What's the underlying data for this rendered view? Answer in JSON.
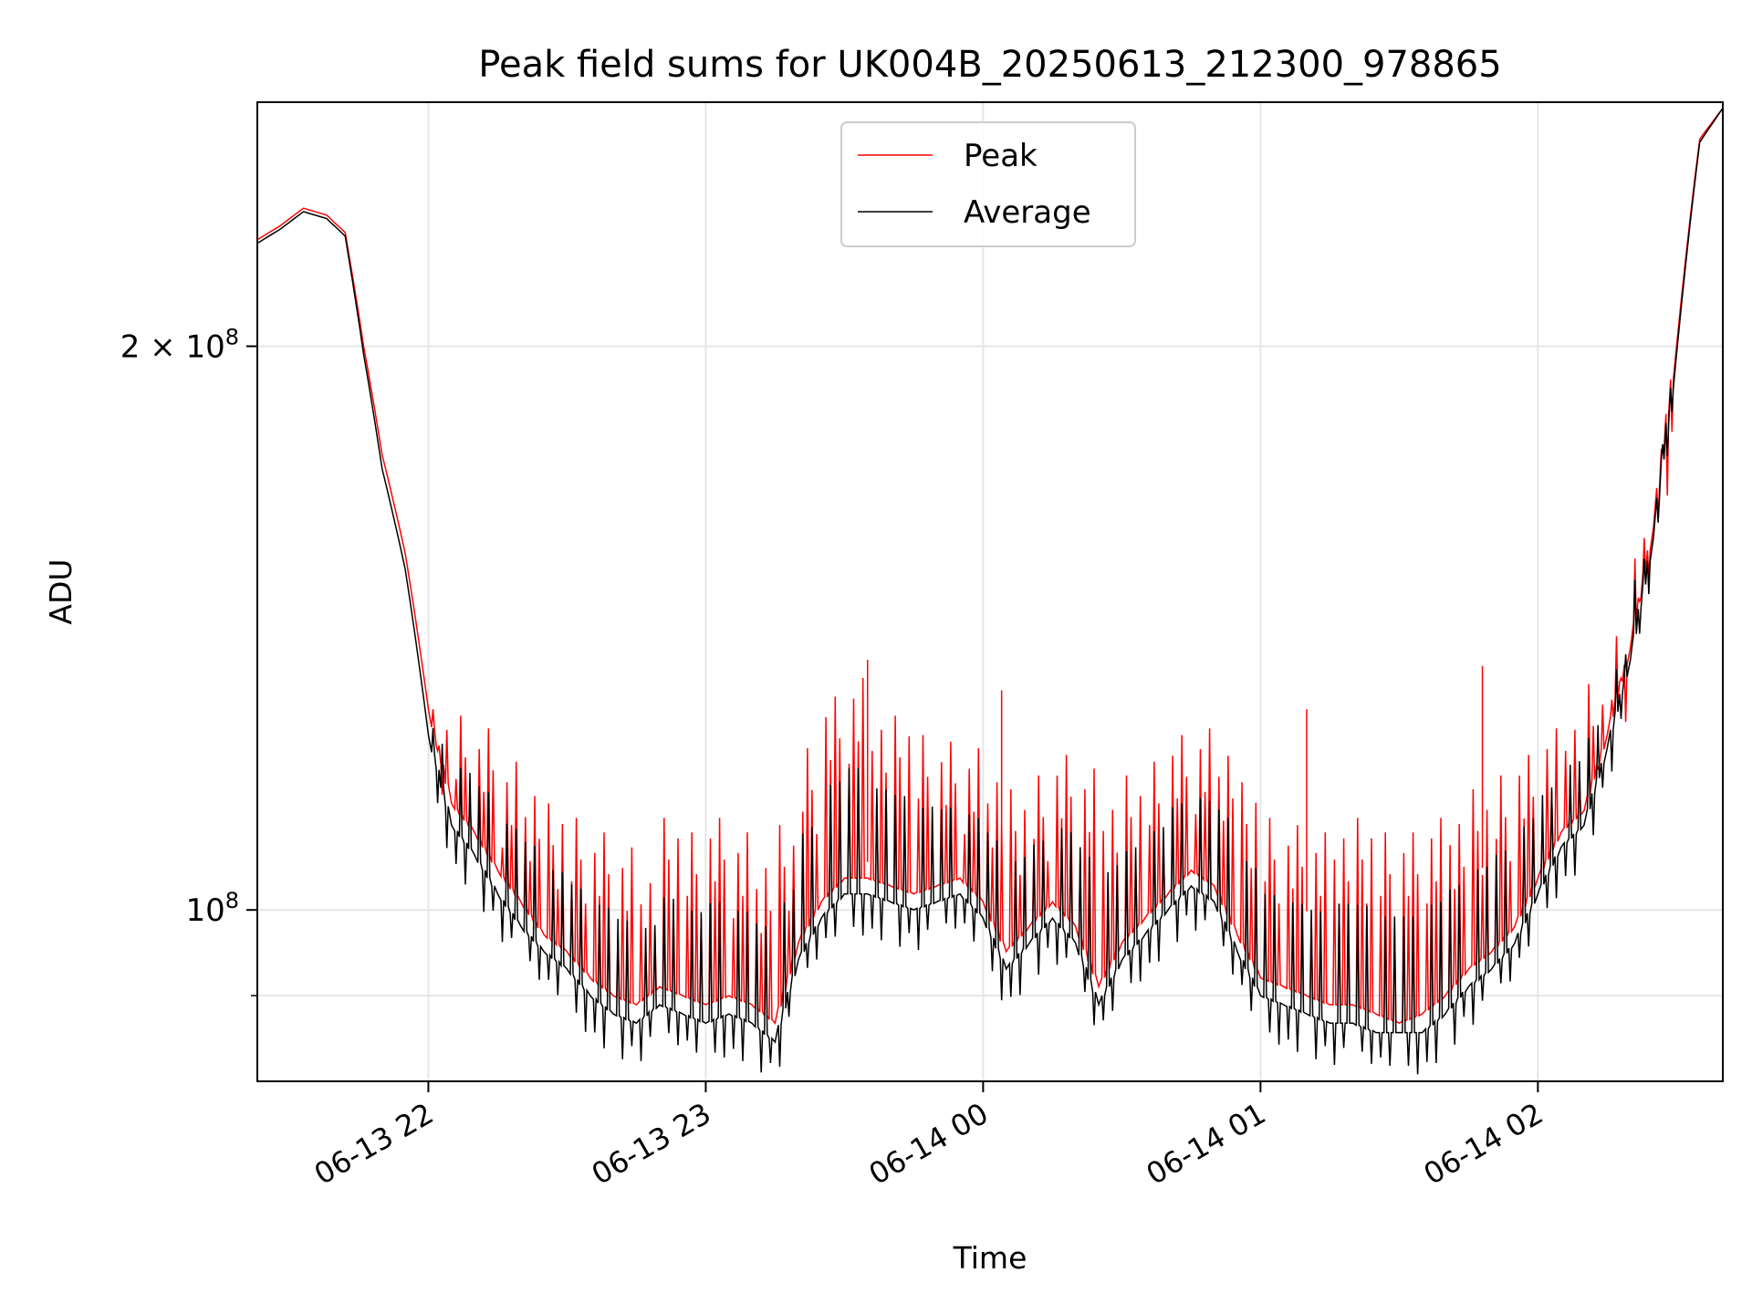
{
  "chart_data": {
    "type": "line",
    "title": "Peak field sums for UK004B_20250613_212300_978865",
    "xlabel": "Time",
    "ylabel": "ADU",
    "yscale": "log",
    "grid": true,
    "legend_position": "upper center",
    "x_range": [
      "2025-06-13T21:23:00",
      "2025-06-14T02:40:00"
    ],
    "y_range": [
      81000000,
      270000000
    ],
    "x_ticks": [
      {
        "value": "2025-06-13T22:00:00",
        "label": "06-13 22"
      },
      {
        "value": "2025-06-13T23:00:00",
        "label": "06-13 23"
      },
      {
        "value": "2025-06-14T00:00:00",
        "label": "06-14 00"
      },
      {
        "value": "2025-06-14T01:00:00",
        "label": "06-14 01"
      },
      {
        "value": "2025-06-14T02:00:00",
        "label": "06-14 02"
      }
    ],
    "y_ticks": [
      {
        "value": 100000000,
        "label": "10",
        "exp": "8",
        "prefix": ""
      },
      {
        "value": 200000000,
        "label": "10",
        "exp": "8",
        "prefix": "2 × "
      }
    ],
    "y_minor_ticks": [
      90000000
    ],
    "x": [
      "2025-06-13T21:23:00",
      "2025-06-13T21:28:00",
      "2025-06-13T21:33:00",
      "2025-06-13T21:38:00",
      "2025-06-13T21:42:00",
      "2025-06-13T21:46:00",
      "2025-06-13T21:50:00",
      "2025-06-13T21:55:00",
      "2025-06-13T22:00:00",
      "2025-06-13T22:05:00",
      "2025-06-13T22:10:00",
      "2025-06-13T22:15:00",
      "2025-06-13T22:20:00",
      "2025-06-13T22:25:00",
      "2025-06-13T22:30:00",
      "2025-06-13T22:35:00",
      "2025-06-13T22:40:00",
      "2025-06-13T22:45:00",
      "2025-06-13T22:50:00",
      "2025-06-13T22:55:00",
      "2025-06-13T23:00:00",
      "2025-06-13T23:05:00",
      "2025-06-13T23:10:00",
      "2025-06-13T23:15:00",
      "2025-06-13T23:20:00",
      "2025-06-13T23:25:00",
      "2025-06-13T23:30:00",
      "2025-06-13T23:35:00",
      "2025-06-13T23:40:00",
      "2025-06-13T23:45:00",
      "2025-06-13T23:50:00",
      "2025-06-13T23:55:00",
      "2025-06-14T00:00:00",
      "2025-06-14T00:05:00",
      "2025-06-14T00:10:00",
      "2025-06-14T00:15:00",
      "2025-06-14T00:20:00",
      "2025-06-14T00:25:00",
      "2025-06-14T00:30:00",
      "2025-06-14T00:35:00",
      "2025-06-14T00:40:00",
      "2025-06-14T00:45:00",
      "2025-06-14T00:50:00",
      "2025-06-14T00:55:00",
      "2025-06-14T01:00:00",
      "2025-06-14T01:05:00",
      "2025-06-14T01:10:00",
      "2025-06-14T01:15:00",
      "2025-06-14T01:20:00",
      "2025-06-14T01:25:00",
      "2025-06-14T01:30:00",
      "2025-06-14T01:35:00",
      "2025-06-14T01:40:00",
      "2025-06-14T01:45:00",
      "2025-06-14T01:50:00",
      "2025-06-14T01:55:00",
      "2025-06-14T02:00:00",
      "2025-06-14T02:05:00",
      "2025-06-14T02:10:00",
      "2025-06-14T02:15:00",
      "2025-06-14T02:20:00",
      "2025-06-14T02:25:00",
      "2025-06-14T02:30:00",
      "2025-06-14T02:35:00",
      "2025-06-14T02:40:00"
    ],
    "series": [
      {
        "name": "Peak",
        "color": "#ff0000",
        "values": [
          228,
          232,
          237,
          235,
          230,
          200,
          175,
          155,
          128,
          114,
          110,
          105,
          101,
          97,
          95,
          92,
          90,
          89,
          91,
          90,
          89,
          90,
          89,
          87,
          96,
          101,
          104,
          104,
          103,
          102,
          103,
          104,
          101,
          95,
          98,
          101,
          98,
          91,
          96,
          99,
          102,
          105,
          103,
          97,
          92,
          91,
          90,
          89,
          89,
          88,
          87,
          88,
          90,
          93,
          95,
          98,
          104,
          110,
          113,
          124,
          138,
          160,
          200,
          258,
          268
        ],
        "peaks": [
          0,
          0,
          0,
          0,
          0,
          0,
          0,
          0,
          128,
          127,
          125,
          120,
          118,
          114,
          112,
          110,
          108,
          106,
          112,
          110,
          112,
          110,
          108,
          111,
          122,
          130,
          133,
          128,
          127,
          124,
          123,
          122,
          120,
          116,
          118,
          121,
          119,
          116,
          118,
          120,
          124,
          125,
          124,
          117,
          112,
          111,
          110,
          112,
          112,
          110,
          110,
          112,
          114,
          116,
          118,
          121,
          125,
          128,
          132,
          140,
          158,
          180,
          0,
          0,
          0
        ],
        "spikes": [
          {
            "x": "2025-06-14T01:10:00",
            "value": 128000000
          },
          {
            "x": "2025-06-14T01:48:00",
            "value": 135000000
          },
          {
            "x": "2025-06-13T23:35:00",
            "value": 136000000
          },
          {
            "x": "2025-06-14T00:04:00",
            "value": 131000000
          }
        ]
      },
      {
        "name": "Average",
        "color": "#000000",
        "values": [
          227,
          231,
          236,
          234,
          229,
          198,
          172,
          152,
          124,
          111,
          107,
          102,
          98,
          95,
          93,
          90,
          88,
          87,
          89,
          88,
          87,
          88,
          87,
          85,
          94,
          99,
          102,
          102,
          101,
          100,
          101,
          102,
          99,
          93,
          96,
          99,
          96,
          89,
          94,
          97,
          100,
          103,
          101,
          95,
          90,
          89,
          88,
          87,
          87,
          86,
          86,
          86,
          88,
          91,
          93,
          96,
          102,
          108,
          111,
          122,
          136,
          158,
          198,
          257,
          268
        ],
        "dips_at": "every sample between 2025-06-13T22:00 and 2025-06-14T02:00, about 3–5% below the value"
      }
    ],
    "value_unit": "× 10^6 ADU"
  }
}
